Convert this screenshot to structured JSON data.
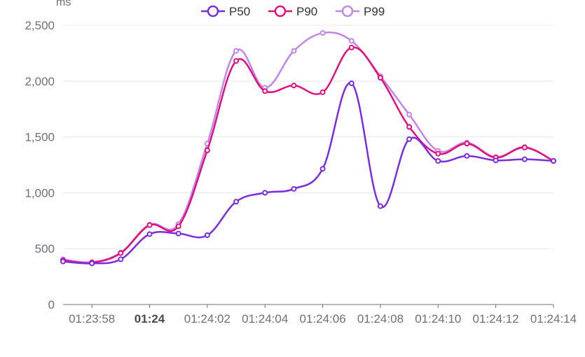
{
  "chart_data": {
    "type": "line",
    "ylabel": "ms",
    "ylim": [
      0,
      2500
    ],
    "yticks": [
      0,
      500,
      1000,
      1500,
      2000,
      2500
    ],
    "ytick_labels": [
      "0",
      "500",
      "1,000",
      "1,500",
      "2,000",
      "2,500"
    ],
    "xlim": [
      "01:23:57",
      "01:24:14"
    ],
    "xticks": [
      {
        "t": "01:23:58",
        "label": "01:23:58",
        "bold": false
      },
      {
        "t": "01:24:00",
        "label": "01:24",
        "bold": true
      },
      {
        "t": "01:24:02",
        "label": "01:24:02",
        "bold": false
      },
      {
        "t": "01:24:04",
        "label": "01:24:04",
        "bold": false
      },
      {
        "t": "01:24:06",
        "label": "01:24:06",
        "bold": false
      },
      {
        "t": "01:24:08",
        "label": "01:24:08",
        "bold": false
      },
      {
        "t": "01:24:10",
        "label": "01:24:10",
        "bold": false
      },
      {
        "t": "01:24:12",
        "label": "01:24:12",
        "bold": false
      },
      {
        "t": "01:24:14",
        "label": "01:24:14",
        "bold": false
      }
    ],
    "x": [
      "01:23:57",
      "01:23:58",
      "01:23:59",
      "01:24:00",
      "01:24:01",
      "01:24:02",
      "01:24:03",
      "01:24:04",
      "01:24:05",
      "01:24:06",
      "01:24:07",
      "01:24:08",
      "01:24:09",
      "01:24:10",
      "01:24:11",
      "01:24:12",
      "01:24:13",
      "01:24:14"
    ],
    "series": [
      {
        "name": "P50",
        "color": "#7c2de0",
        "values": [
          385,
          368,
          405,
          630,
          635,
          620,
          920,
          1000,
          1035,
          1215,
          1980,
          880,
          1480,
          1285,
          1330,
          1290,
          1300,
          1285
        ]
      },
      {
        "name": "P90",
        "color": "#e0117f",
        "values": [
          395,
          375,
          460,
          710,
          700,
          1380,
          2180,
          1910,
          1960,
          1900,
          2300,
          2030,
          1590,
          1350,
          1440,
          1315,
          1405,
          1285
        ]
      },
      {
        "name": "P99",
        "color": "#c285ea",
        "values": [
          405,
          380,
          465,
          715,
          720,
          1440,
          2270,
          1940,
          2270,
          2430,
          2360,
          2045,
          1700,
          1375,
          1450,
          1320,
          1410,
          1285
        ]
      }
    ],
    "grid": true,
    "legend_position": "top-center"
  }
}
